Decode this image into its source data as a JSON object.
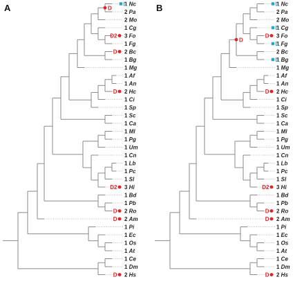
{
  "colors": {
    "duplication": "#d9252b",
    "loss": "#24a9c9",
    "branch": "#8a8a8a"
  },
  "legend": {
    "duplication_marker": "D",
    "loss_marker": "L"
  },
  "leaves": [
    {
      "count": "1",
      "name": "Nc"
    },
    {
      "count": "2",
      "name": "Pa"
    },
    {
      "count": "2",
      "name": "Mo"
    },
    {
      "count": "1",
      "name": "Cg"
    },
    {
      "count": "3",
      "name": "Fo"
    },
    {
      "count": "1",
      "name": "Fg"
    },
    {
      "count": "2",
      "name": "Bc"
    },
    {
      "count": "1",
      "name": "Bg"
    },
    {
      "count": "1",
      "name": "Mg"
    },
    {
      "count": "1",
      "name": "Af"
    },
    {
      "count": "1",
      "name": "An"
    },
    {
      "count": "2",
      "name": "Hc"
    },
    {
      "count": "1",
      "name": "Ci"
    },
    {
      "count": "1",
      "name": "Sp"
    },
    {
      "count": "1",
      "name": "Sc"
    },
    {
      "count": "1",
      "name": "Ca"
    },
    {
      "count": "1",
      "name": "Ml"
    },
    {
      "count": "1",
      "name": "Pg"
    },
    {
      "count": "1",
      "name": "Um"
    },
    {
      "count": "1",
      "name": "Cn"
    },
    {
      "count": "1",
      "name": "Lb"
    },
    {
      "count": "1",
      "name": "Pc"
    },
    {
      "count": "1",
      "name": "Sl"
    },
    {
      "count": "3",
      "name": "Hi"
    },
    {
      "count": "1",
      "name": "Bd"
    },
    {
      "count": "1",
      "name": "Pb"
    },
    {
      "count": "2",
      "name": "Ro"
    },
    {
      "count": "2",
      "name": "Am"
    },
    {
      "count": "1",
      "name": "Pi"
    },
    {
      "count": "1",
      "name": "Ec"
    },
    {
      "count": "1",
      "name": "Os"
    },
    {
      "count": "1",
      "name": "At"
    },
    {
      "count": "1",
      "name": "Ce"
    },
    {
      "count": "1",
      "name": "Dm"
    },
    {
      "count": "2",
      "name": "Hs"
    }
  ],
  "panels": [
    {
      "label": "A",
      "events": [
        {
          "leaf": 0,
          "type": "loss",
          "text": "L"
        },
        {
          "node": "nc_pa",
          "type": "dup",
          "text": "D"
        },
        {
          "leaf": 4,
          "type": "dup",
          "text": "D2"
        },
        {
          "leaf": 6,
          "type": "dup",
          "text": "D"
        },
        {
          "leaf": 11,
          "type": "dup",
          "text": "D"
        },
        {
          "leaf": 23,
          "type": "dup",
          "text": "D2"
        },
        {
          "leaf": 26,
          "type": "dup",
          "text": "D"
        },
        {
          "leaf": 27,
          "type": "dup",
          "text": "D"
        },
        {
          "leaf": 34,
          "type": "dup",
          "text": "D"
        }
      ]
    },
    {
      "label": "B",
      "events": [
        {
          "leaf": 0,
          "type": "loss",
          "text": "L"
        },
        {
          "leaf": 3,
          "type": "loss",
          "text": "L"
        },
        {
          "leaf": 4,
          "type": "dup",
          "text": "D"
        },
        {
          "leaf": 5,
          "type": "loss",
          "text": "L"
        },
        {
          "leaf": 7,
          "type": "loss",
          "text": "L"
        },
        {
          "node": "leotio",
          "type": "dup",
          "text": "D"
        },
        {
          "leaf": 11,
          "type": "dup",
          "text": "D"
        },
        {
          "leaf": 23,
          "type": "dup",
          "text": "D2"
        },
        {
          "leaf": 26,
          "type": "dup",
          "text": "D"
        },
        {
          "leaf": 27,
          "type": "dup",
          "text": "D"
        },
        {
          "leaf": 34,
          "type": "dup",
          "text": "D"
        }
      ]
    }
  ]
}
